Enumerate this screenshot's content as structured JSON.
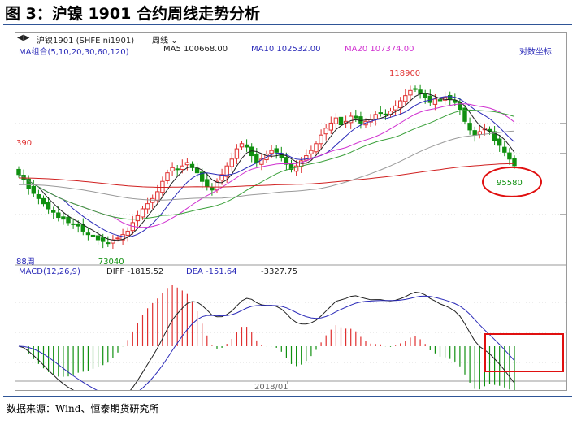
{
  "figure_title": "图 3：沪镍 1901 合约周线走势分析",
  "toolbar": {
    "symbol": "沪镍1901 (SHFE ni1901)",
    "period": "周线",
    "period_icon": "chevron-down-icon",
    "nav_icon": "back-forward-icon"
  },
  "legend_main": {
    "group_label": "MA组合(5,10,20,30,60,120)",
    "ma5": "MA5 100668.00",
    "ma10": "MA10 102532.00",
    "ma20": "MA20 107374.00",
    "log_scale": "对数坐标"
  },
  "legend_macd": {
    "name": "MACD(12,26,9)",
    "diff": "DIFF -1815.52",
    "dea": "DEA -151.64",
    "macd": "-3327.75"
  },
  "colors": {
    "up": "#e03030",
    "down": "#109010",
    "ma5": "#202020",
    "ma10": "#2a2ab8",
    "ma20": "#d030d0",
    "ma30": "#3aa03a",
    "ma60": "#9a9a9a",
    "ma120": "#d02020",
    "highlight": "#e01010"
  },
  "annotations": {
    "high": "118900",
    "low": "73040",
    "last": "95580",
    "left_edge_price": "390",
    "left_edge_period": "88周",
    "x_tick": "2018/01"
  },
  "source": "数据来源：Wind、恒泰期货研究所",
  "chart_data": {
    "type": "candlestick",
    "period": "weekly",
    "price_anchors": [
      {
        "label": "high",
        "value": 118900
      },
      {
        "label": "low",
        "value": 73040
      },
      {
        "label": "last",
        "value": 95580
      }
    ],
    "close": [
      93000,
      91500,
      89000,
      87500,
      86000,
      84500,
      83000,
      82000,
      80500,
      80000,
      79000,
      78500,
      78000,
      76500,
      75500,
      75000,
      74000,
      73500,
      73040,
      74000,
      74500,
      75500,
      76500,
      79000,
      81000,
      83000,
      84500,
      86000,
      88000,
      91000,
      93500,
      95000,
      94500,
      95500,
      96500,
      95000,
      93500,
      91000,
      89500,
      88500,
      91000,
      93000,
      95500,
      97500,
      100500,
      102000,
      101000,
      98500,
      96500,
      97500,
      99000,
      100000,
      99500,
      98000,
      96000,
      94500,
      95500,
      97000,
      98500,
      100000,
      102000,
      104500,
      106500,
      108000,
      109500,
      107500,
      108500,
      110000,
      109500,
      108000,
      108500,
      109000,
      110500,
      111000,
      110500,
      111500,
      113000,
      114500,
      116000,
      117500,
      118000,
      116500,
      115500,
      114000,
      115000,
      114500,
      115500,
      115000,
      114000,
      112000,
      108500,
      106000,
      104500,
      105500,
      106500,
      105500,
      103000,
      101500,
      99500,
      97500,
      95580
    ],
    "ma": [
      {
        "name": "MA5",
        "current": 100668.0
      },
      {
        "name": "MA10",
        "current": 102532.0
      },
      {
        "name": "MA20",
        "current": 107374.0
      },
      {
        "name": "MA30"
      },
      {
        "name": "MA60"
      },
      {
        "name": "MA120"
      }
    ],
    "macd": {
      "fast": 12,
      "slow": 26,
      "signal": 9,
      "diff": -1815.52,
      "dea": -151.64,
      "macd": -3327.75
    },
    "x_ticks": [
      "2018/01"
    ]
  }
}
